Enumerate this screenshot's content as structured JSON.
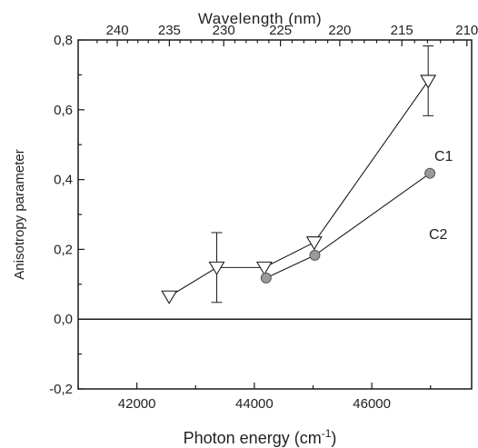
{
  "chart_data": {
    "type": "scatter",
    "xlabel": "Photon energy (cm",
    "xlabel_superscript": "-1",
    "xlabel_suffix": ")",
    "x2label": "Wavelength (nm)",
    "ylabel": "Anisotropy parameter",
    "xlim": [
      41000,
      47700
    ],
    "ylim": [
      -0.2,
      0.8
    ],
    "xticks": [
      42000,
      44000,
      46000
    ],
    "xtick_labels": [
      "42000",
      "44000",
      "46000"
    ],
    "yticks": [
      -0.2,
      0.0,
      0.2,
      0.4,
      0.6,
      0.8
    ],
    "ytick_labels": [
      "-0,2",
      "0,0",
      "0,2",
      "0,4",
      "0,6",
      "0,8"
    ],
    "x2ticks": [
      240,
      235,
      230,
      225,
      220,
      215,
      210
    ],
    "x2tick_labels": [
      "240",
      "235",
      "230",
      "225",
      "220",
      "215",
      "210"
    ],
    "zero_line": 0.0,
    "grid": false,
    "series": [
      {
        "name": "C1",
        "marker": "triangle-down",
        "x": [
          42550,
          43360,
          44170,
          45020,
          46960
        ],
        "y": [
          0.065,
          0.148,
          0.148,
          0.22,
          0.683
        ],
        "yerr": [
          0.0,
          0.1,
          0.0,
          0.0,
          0.1
        ]
      },
      {
        "name": "C2",
        "marker": "circle",
        "x": [
          44200,
          45030,
          46990
        ],
        "y": [
          0.118,
          0.183,
          0.418
        ],
        "yerr": [
          0,
          0,
          0
        ]
      }
    ],
    "series_label_positions": [
      "mid-right",
      "lower-right"
    ],
    "colors": {
      "axis": "#1a1a1a",
      "line": "#1a1a1a",
      "triangle_fill": "#ffffff",
      "circle_fill": "#9a9a9a"
    }
  }
}
